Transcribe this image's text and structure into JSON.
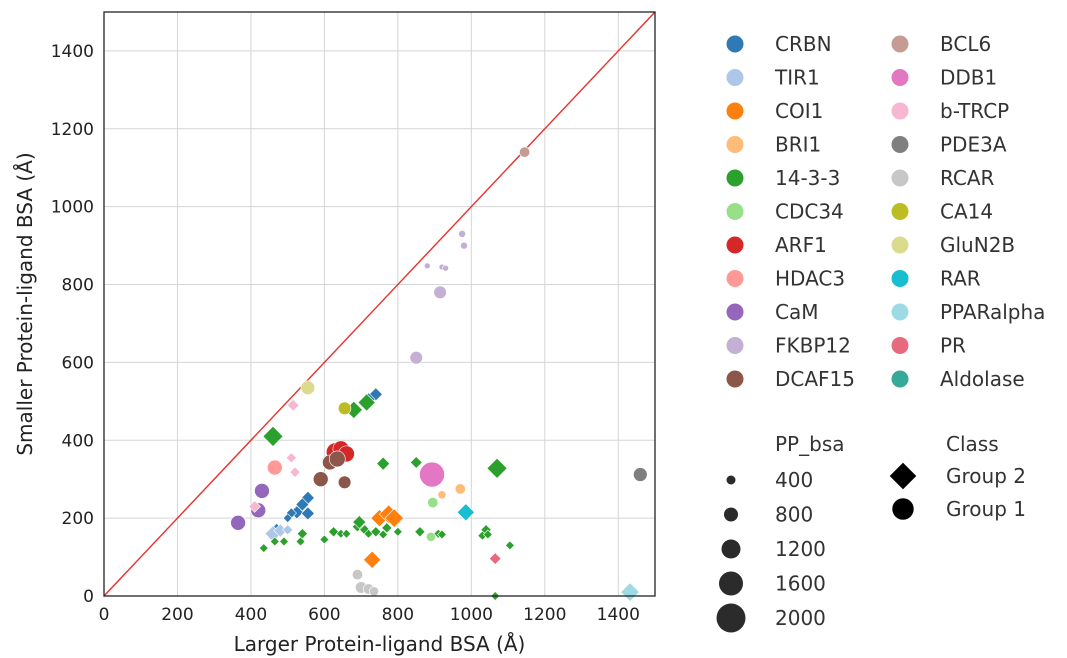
{
  "chart_data": {
    "type": "scatter",
    "xlabel": "Larger Protein-ligand BSA (Å)",
    "ylabel": "Smaller Protein-ligand BSA (Å)",
    "xlim": [
      0,
      1500
    ],
    "ylim": [
      0,
      1500
    ],
    "xticks": [
      "0",
      "200",
      "400",
      "600",
      "800",
      "1000",
      "1200",
      "1400"
    ],
    "yticks": [
      "0",
      "200",
      "400",
      "600",
      "800",
      "1000",
      "1200",
      "1400"
    ],
    "grid": true,
    "diagonal_line": {
      "from": [
        0,
        0
      ],
      "to": [
        1500,
        1500
      ],
      "color": "#e8302c"
    },
    "marker_encoding": {
      "size": "PP_bsa",
      "shape": "Class"
    },
    "series": [
      {
        "name": "CRBN",
        "color": "#2f79b5",
        "points": [
          {
            "x": 740,
            "y": 518,
            "s": 700,
            "m": "D"
          },
          {
            "x": 720,
            "y": 505,
            "s": 700,
            "m": "D"
          },
          {
            "x": 555,
            "y": 252,
            "s": 700,
            "m": "D"
          },
          {
            "x": 540,
            "y": 235,
            "s": 700,
            "m": "D"
          },
          {
            "x": 525,
            "y": 215,
            "s": 700,
            "m": "D"
          },
          {
            "x": 555,
            "y": 212,
            "s": 700,
            "m": "D"
          },
          {
            "x": 510,
            "y": 213,
            "s": 500,
            "m": "D"
          },
          {
            "x": 500,
            "y": 200,
            "s": 400,
            "m": "D"
          },
          {
            "x": 470,
            "y": 175,
            "s": 400,
            "m": "D"
          },
          {
            "x": 455,
            "y": 160,
            "s": 400,
            "m": "D"
          }
        ]
      },
      {
        "name": "TIR1",
        "color": "#aec7e8",
        "points": [
          {
            "x": 460,
            "y": 160,
            "s": 900,
            "m": "D"
          },
          {
            "x": 480,
            "y": 168,
            "s": 700,
            "m": "D"
          },
          {
            "x": 500,
            "y": 170,
            "s": 500,
            "m": "D"
          }
        ]
      },
      {
        "name": "COI1",
        "color": "#ff7f0e",
        "points": [
          {
            "x": 730,
            "y": 93,
            "s": 1000,
            "m": "D"
          },
          {
            "x": 750,
            "y": 200,
            "s": 1000,
            "m": "D"
          },
          {
            "x": 775,
            "y": 210,
            "s": 1100,
            "m": "D"
          },
          {
            "x": 790,
            "y": 200,
            "s": 1100,
            "m": "D"
          }
        ]
      },
      {
        "name": "BRI1",
        "color": "#ffbb78",
        "points": [
          {
            "x": 970,
            "y": 275,
            "s": 700,
            "m": "o"
          },
          {
            "x": 920,
            "y": 260,
            "s": 500,
            "m": "o"
          }
        ]
      },
      {
        "name": "14-3-3",
        "color": "#2ca02c",
        "points": [
          {
            "x": 460,
            "y": 410,
            "s": 1200,
            "m": "D"
          },
          {
            "x": 1070,
            "y": 328,
            "s": 1200,
            "m": "D"
          },
          {
            "x": 680,
            "y": 478,
            "s": 1000,
            "m": "D"
          },
          {
            "x": 715,
            "y": 497,
            "s": 1000,
            "m": "D"
          },
          {
            "x": 760,
            "y": 340,
            "s": 700,
            "m": "D"
          },
          {
            "x": 850,
            "y": 343,
            "s": 600,
            "m": "D"
          },
          {
            "x": 435,
            "y": 123,
            "s": 400,
            "m": "D"
          },
          {
            "x": 465,
            "y": 140,
            "s": 400,
            "m": "D"
          },
          {
            "x": 490,
            "y": 140,
            "s": 400,
            "m": "D"
          },
          {
            "x": 535,
            "y": 140,
            "s": 400,
            "m": "D"
          },
          {
            "x": 540,
            "y": 160,
            "s": 500,
            "m": "D"
          },
          {
            "x": 600,
            "y": 145,
            "s": 400,
            "m": "D"
          },
          {
            "x": 625,
            "y": 165,
            "s": 500,
            "m": "D"
          },
          {
            "x": 645,
            "y": 160,
            "s": 400,
            "m": "D"
          },
          {
            "x": 660,
            "y": 160,
            "s": 400,
            "m": "D"
          },
          {
            "x": 690,
            "y": 178,
            "s": 500,
            "m": "D"
          },
          {
            "x": 695,
            "y": 190,
            "s": 700,
            "m": "D"
          },
          {
            "x": 710,
            "y": 170,
            "s": 500,
            "m": "D"
          },
          {
            "x": 720,
            "y": 160,
            "s": 400,
            "m": "D"
          },
          {
            "x": 740,
            "y": 165,
            "s": 500,
            "m": "D"
          },
          {
            "x": 760,
            "y": 158,
            "s": 400,
            "m": "D"
          },
          {
            "x": 770,
            "y": 175,
            "s": 500,
            "m": "D"
          },
          {
            "x": 800,
            "y": 165,
            "s": 400,
            "m": "D"
          },
          {
            "x": 860,
            "y": 165,
            "s": 500,
            "m": "D"
          },
          {
            "x": 910,
            "y": 160,
            "s": 400,
            "m": "D"
          },
          {
            "x": 920,
            "y": 158,
            "s": 400,
            "m": "D"
          },
          {
            "x": 1040,
            "y": 170,
            "s": 500,
            "m": "D"
          },
          {
            "x": 1030,
            "y": 155,
            "s": 400,
            "m": "D"
          },
          {
            "x": 1045,
            "y": 158,
            "s": 400,
            "m": "D"
          },
          {
            "x": 1105,
            "y": 130,
            "s": 400,
            "m": "D"
          },
          {
            "x": 1065,
            "y": 0,
            "s": 400,
            "m": "D"
          },
          {
            "x": 420,
            "y": 210,
            "s": 400,
            "m": "D"
          }
        ]
      },
      {
        "name": "CDC34",
        "color": "#98df8a",
        "points": [
          {
            "x": 895,
            "y": 240,
            "s": 700,
            "m": "o"
          },
          {
            "x": 890,
            "y": 152,
            "s": 600,
            "m": "o"
          }
        ]
      },
      {
        "name": "ARF1",
        "color": "#d62728",
        "points": [
          {
            "x": 630,
            "y": 370,
            "s": 1400,
            "m": "o"
          },
          {
            "x": 645,
            "y": 378,
            "s": 1200,
            "m": "o"
          },
          {
            "x": 660,
            "y": 365,
            "s": 1200,
            "m": "o"
          }
        ]
      },
      {
        "name": "HDAC3",
        "color": "#ff9896",
        "points": [
          {
            "x": 465,
            "y": 330,
            "s": 1100,
            "m": "o"
          }
        ]
      },
      {
        "name": "CaM",
        "color": "#9467bd",
        "points": [
          {
            "x": 365,
            "y": 188,
            "s": 1100,
            "m": "o"
          },
          {
            "x": 430,
            "y": 270,
            "s": 1100,
            "m": "o"
          },
          {
            "x": 420,
            "y": 220,
            "s": 1100,
            "m": "o"
          }
        ]
      },
      {
        "name": "FKBP12",
        "color": "#c5b0d5",
        "points": [
          {
            "x": 915,
            "y": 780,
            "s": 900,
            "m": "o"
          },
          {
            "x": 850,
            "y": 612,
            "s": 900,
            "m": "o"
          },
          {
            "x": 975,
            "y": 930,
            "s": 400,
            "m": "o"
          },
          {
            "x": 980,
            "y": 900,
            "s": 400,
            "m": "o"
          },
          {
            "x": 920,
            "y": 845,
            "s": 300,
            "m": "o"
          },
          {
            "x": 930,
            "y": 842,
            "s": 300,
            "m": "o"
          },
          {
            "x": 880,
            "y": 848,
            "s": 300,
            "m": "o"
          }
        ]
      },
      {
        "name": "DCAF15",
        "color": "#8c564b",
        "points": [
          {
            "x": 590,
            "y": 300,
            "s": 1100,
            "m": "o"
          },
          {
            "x": 615,
            "y": 343,
            "s": 1100,
            "m": "o"
          },
          {
            "x": 635,
            "y": 352,
            "s": 1200,
            "m": "o"
          },
          {
            "x": 655,
            "y": 292,
            "s": 900,
            "m": "o"
          }
        ]
      },
      {
        "name": "BCL6",
        "color": "#c49c94",
        "points": [
          {
            "x": 1145,
            "y": 1140,
            "s": 700,
            "m": "o"
          }
        ]
      },
      {
        "name": "DDB1",
        "color": "#e377c2",
        "points": [
          {
            "x": 893,
            "y": 312,
            "s": 2000,
            "m": "o"
          }
        ]
      },
      {
        "name": "b-TRCP",
        "color": "#f7b6d2",
        "points": [
          {
            "x": 515,
            "y": 490,
            "s": 600,
            "m": "D"
          },
          {
            "x": 510,
            "y": 355,
            "s": 500,
            "m": "D"
          },
          {
            "x": 520,
            "y": 318,
            "s": 500,
            "m": "D"
          },
          {
            "x": 410,
            "y": 230,
            "s": 600,
            "m": "D"
          }
        ]
      },
      {
        "name": "PDE3A",
        "color": "#7f7f7f",
        "points": [
          {
            "x": 1460,
            "y": 312,
            "s": 1000,
            "m": "o"
          }
        ]
      },
      {
        "name": "RCAR",
        "color": "#c7c7c7",
        "points": [
          {
            "x": 690,
            "y": 55,
            "s": 700,
            "m": "o"
          },
          {
            "x": 700,
            "y": 22,
            "s": 800,
            "m": "o"
          },
          {
            "x": 720,
            "y": 18,
            "s": 700,
            "m": "o"
          },
          {
            "x": 735,
            "y": 12,
            "s": 600,
            "m": "o"
          }
        ]
      },
      {
        "name": "CA14",
        "color": "#bcbd22",
        "points": [
          {
            "x": 655,
            "y": 482,
            "s": 900,
            "m": "o"
          }
        ]
      },
      {
        "name": "GluN2B",
        "color": "#dbdb8d",
        "points": [
          {
            "x": 555,
            "y": 535,
            "s": 1000,
            "m": "o"
          }
        ]
      },
      {
        "name": "RAR",
        "color": "#17becf",
        "points": [
          {
            "x": 985,
            "y": 215,
            "s": 1000,
            "m": "D"
          }
        ]
      },
      {
        "name": "PPARalpha",
        "color": "#9edae5",
        "points": [
          {
            "x": 1432,
            "y": 10,
            "s": 1100,
            "m": "D"
          }
        ]
      },
      {
        "name": "PR",
        "color": "#e7697d",
        "points": [
          {
            "x": 1065,
            "y": 96,
            "s": 600,
            "m": "D"
          }
        ]
      },
      {
        "name": "Aldolase",
        "color": "#35a99a",
        "points": []
      }
    ],
    "size_legend": {
      "title": "PP_bsa",
      "values": [
        "400",
        "800",
        "1200",
        "1600",
        "2000"
      ]
    },
    "class_legend": {
      "title": "Class",
      "entries": [
        {
          "label": "Group 2",
          "marker": "D"
        },
        {
          "label": "Group 1",
          "marker": "o"
        }
      ]
    }
  }
}
